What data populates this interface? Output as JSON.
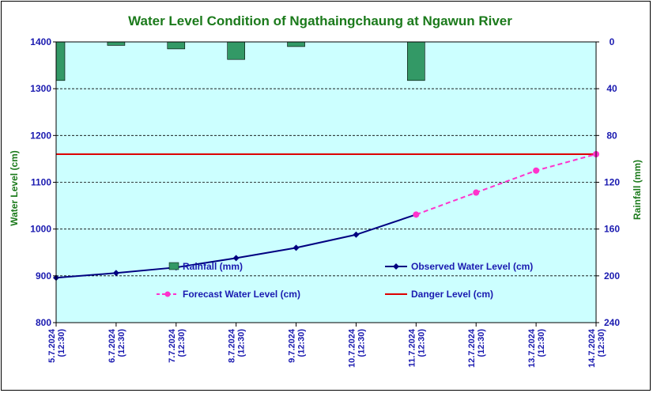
{
  "chart_data": {
    "type": "line",
    "title": "Water Level Condition of  Ngathaingchaung at Ngawun River",
    "ylabel": "Water Level (cm)",
    "y2label": "Rainfall (mm)",
    "ylim": [
      800,
      1400
    ],
    "y2lim": [
      0,
      240
    ],
    "y2_inverted": true,
    "yticks": [
      "800",
      "900",
      "1000",
      "1100",
      "1200",
      "1300",
      "1400"
    ],
    "y2ticks": [
      "0",
      "40",
      "80",
      "120",
      "160",
      "200",
      "240"
    ],
    "categories": [
      [
        "5.7.2024",
        "(12:30)"
      ],
      [
        "6.7.2024",
        "(12:30)"
      ],
      [
        "7.7.2024",
        "(12:30)"
      ],
      [
        "8.7.2024",
        "(12:30)"
      ],
      [
        "9.7.2024",
        "(12:30)"
      ],
      [
        "10.7.2024",
        "(12:30)"
      ],
      [
        "11.7.2024",
        "(12:30)"
      ],
      [
        "12.7.2024",
        "(12:30)"
      ],
      [
        "13.7.2024",
        "(12:30)"
      ],
      [
        "14.7.2024",
        "(12:30)"
      ]
    ],
    "series": [
      {
        "name": "Rainfall (mm)",
        "type": "bar",
        "axis": "right",
        "color": "#339966",
        "values": [
          33,
          3,
          6,
          15,
          4,
          null,
          33,
          null,
          null,
          null
        ]
      },
      {
        "name": "Observed Water Level (cm)",
        "type": "line",
        "axis": "left",
        "color": "#000080",
        "values": [
          896,
          906,
          918,
          938,
          960,
          988,
          1031,
          null,
          null,
          null
        ]
      },
      {
        "name": "Forecast Water Level (cm)",
        "type": "line",
        "axis": "left",
        "color": "#ff33cc",
        "dashed": true,
        "values": [
          null,
          null,
          null,
          null,
          null,
          null,
          1031,
          1078,
          1125,
          1160
        ]
      },
      {
        "name": "Danger Level (cm)",
        "type": "line",
        "axis": "left",
        "color": "#dd0000",
        "constant": 1160
      }
    ],
    "colors": {
      "plot_background": "#ccffff",
      "gridline": "#000000",
      "tick_text": "#1a1ab0",
      "title_text": "#1b7a1b"
    },
    "grid": true,
    "legend_position": "inside-bottom"
  }
}
